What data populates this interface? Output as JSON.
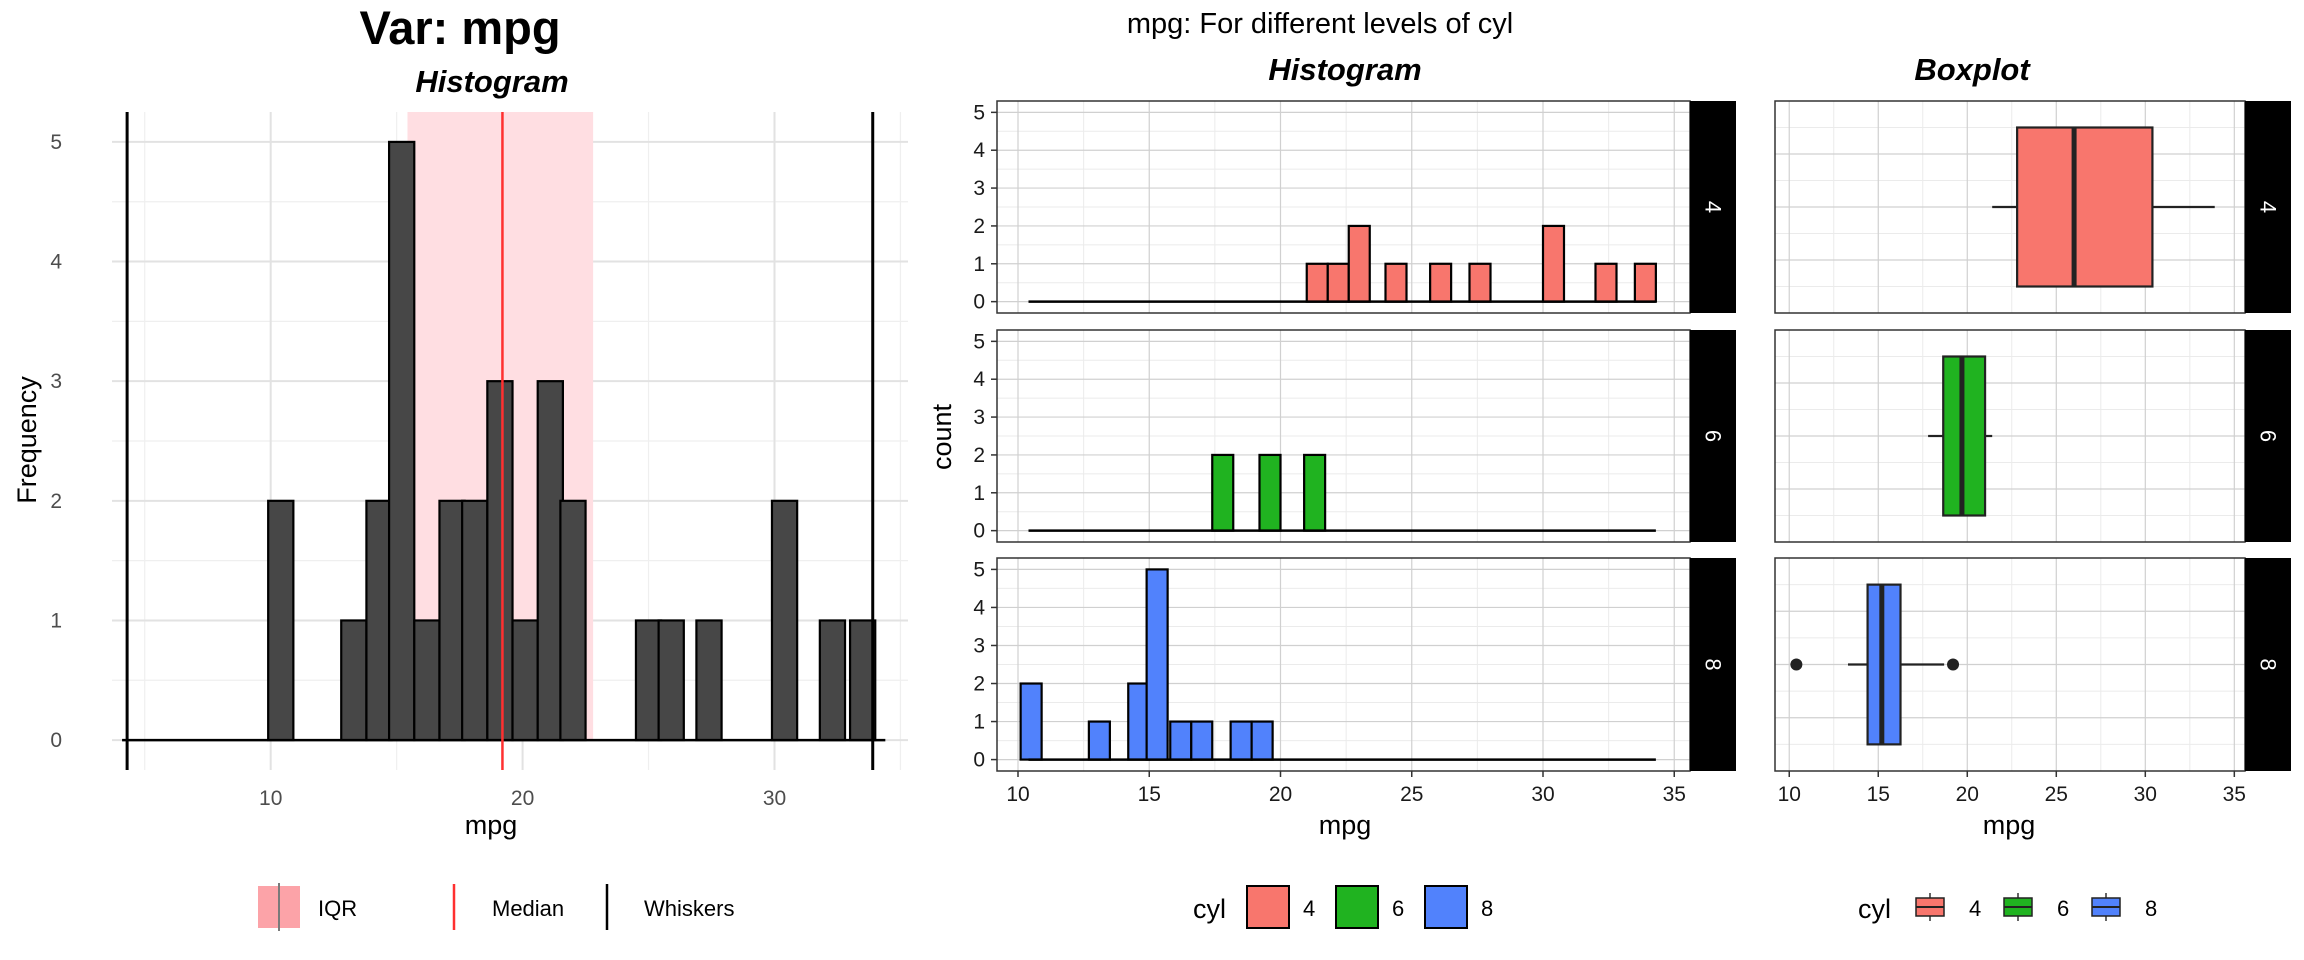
{
  "figure": {
    "left_title": "Var: mpg",
    "right_title": "mpg: For different levels of cyl"
  },
  "chart_data": [
    {
      "type": "bar",
      "subtitle": "Histogram",
      "xlabel": "mpg",
      "ylabel": "Frequency",
      "xlim": [
        3.7,
        35.3
      ],
      "ylim": [
        -0.25,
        5.25
      ],
      "x_ticks": [
        10,
        20,
        30
      ],
      "y_ticks": [
        0,
        1,
        2,
        3,
        4,
        5
      ],
      "bin_width": 1,
      "bins": [
        {
          "x": 10.4,
          "count": 2
        },
        {
          "x": 13.3,
          "count": 1
        },
        {
          "x": 14.3,
          "count": 2
        },
        {
          "x": 15.2,
          "count": 5
        },
        {
          "x": 16.2,
          "count": 1
        },
        {
          "x": 17.2,
          "count": 2
        },
        {
          "x": 18.1,
          "count": 2
        },
        {
          "x": 19.1,
          "count": 3
        },
        {
          "x": 20.1,
          "count": 1
        },
        {
          "x": 21.1,
          "count": 3
        },
        {
          "x": 22.0,
          "count": 2
        },
        {
          "x": 25.0,
          "count": 1
        },
        {
          "x": 25.9,
          "count": 1
        },
        {
          "x": 27.4,
          "count": 1
        },
        {
          "x": 30.4,
          "count": 2
        },
        {
          "x": 32.3,
          "count": 1
        },
        {
          "x": 33.5,
          "count": 1
        }
      ],
      "baseline_range": [
        4.1,
        34.4
      ],
      "iqr": [
        15.43,
        22.8
      ],
      "median": 19.2,
      "whiskers": [
        4.3,
        33.9
      ],
      "legend": [
        "IQR",
        "Median",
        "Whiskers"
      ],
      "colors": {
        "bar": "#474747",
        "iqr": "#ffdee2",
        "median": "#ff3030",
        "whisker": "#000000"
      }
    },
    {
      "type": "bar",
      "subtitle": "Histogram",
      "xlabel": "mpg",
      "ylabel": "count",
      "xlim": [
        9.2,
        35.6
      ],
      "ylim": [
        -0.3,
        5.3
      ],
      "x_ticks": [
        10,
        15,
        20,
        25,
        30,
        35
      ],
      "y_ticks": [
        0,
        1,
        2,
        3,
        4,
        5
      ],
      "bin_width": 0.8,
      "baseline_range": [
        10.4,
        34.3
      ],
      "facets": [
        {
          "label": "4",
          "color": "#f8766d",
          "bins": [
            {
              "x": 21.4,
              "count": 1
            },
            {
              "x": 22.2,
              "count": 1
            },
            {
              "x": 23.0,
              "count": 2
            },
            {
              "x": 24.4,
              "count": 1
            },
            {
              "x": 26.1,
              "count": 1
            },
            {
              "x": 27.6,
              "count": 1
            },
            {
              "x": 30.4,
              "count": 2
            },
            {
              "x": 32.4,
              "count": 1
            },
            {
              "x": 33.9,
              "count": 1
            }
          ]
        },
        {
          "label": "6",
          "color": "#20b320",
          "bins": [
            {
              "x": 17.8,
              "count": 2
            },
            {
              "x": 19.6,
              "count": 2
            },
            {
              "x": 21.3,
              "count": 2
            }
          ]
        },
        {
          "label": "8",
          "color": "#5182fc",
          "bins": [
            {
              "x": 10.5,
              "count": 2
            },
            {
              "x": 13.1,
              "count": 1
            },
            {
              "x": 14.6,
              "count": 2
            },
            {
              "x": 15.3,
              "count": 5
            },
            {
              "x": 16.2,
              "count": 1
            },
            {
              "x": 17.0,
              "count": 1
            },
            {
              "x": 18.5,
              "count": 1
            },
            {
              "x": 19.3,
              "count": 1
            }
          ]
        }
      ],
      "legend_title": "cyl",
      "legend": [
        "4",
        "6",
        "8"
      ]
    },
    {
      "type": "box",
      "subtitle": "Boxplot",
      "xlabel": "mpg",
      "xlim": [
        9.2,
        35.6
      ],
      "x_ticks": [
        10,
        15,
        20,
        25,
        30,
        35
      ],
      "facets": [
        {
          "label": "4",
          "color": "#f8766d",
          "whisker_low": 21.4,
          "q1": 22.8,
          "median": 26.0,
          "q3": 30.4,
          "whisker_high": 33.9,
          "outliers": []
        },
        {
          "label": "6",
          "color": "#20b320",
          "whisker_low": 17.8,
          "q1": 18.65,
          "median": 19.7,
          "q3": 21.0,
          "whisker_high": 21.4,
          "outliers": []
        },
        {
          "label": "8",
          "color": "#5182fc",
          "whisker_low": 13.3,
          "q1": 14.4,
          "median": 15.2,
          "q3": 16.25,
          "whisker_high": 18.7,
          "outliers": [
            10.4,
            19.2
          ]
        }
      ],
      "legend_title": "cyl",
      "legend": [
        "4",
        "6",
        "8"
      ]
    }
  ]
}
